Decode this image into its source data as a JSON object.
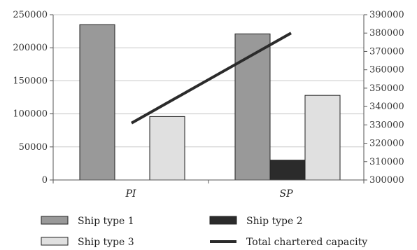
{
  "chart_data": {
    "type": "bar",
    "categories": [
      "PI",
      "SP"
    ],
    "series": [
      {
        "name": "Ship type 1",
        "values": [
          235000,
          221000
        ],
        "color": "#999999",
        "axis": "left"
      },
      {
        "name": "Ship type 2",
        "values": [
          0,
          30000
        ],
        "color": "#2b2b2b",
        "axis": "left"
      },
      {
        "name": "Ship type 3",
        "values": [
          96000,
          128000
        ],
        "color": "#e0e0e0",
        "axis": "left"
      },
      {
        "name": "Total chartered capacity",
        "type": "line",
        "values": [
          331000,
          380000
        ],
        "color": "#2b2b2b",
        "axis": "right"
      }
    ],
    "ylim_left": [
      0,
      250000
    ],
    "yticks_left": [
      "0",
      "50000",
      "100000",
      "150000",
      "200000",
      "250000"
    ],
    "ylim_right": [
      300000,
      390000
    ],
    "yticks_right": [
      "300000",
      "310000",
      "320000",
      "330000",
      "340000",
      "350000",
      "360000",
      "370000",
      "380000",
      "390000"
    ],
    "grid": true,
    "legend_position": "bottom"
  }
}
